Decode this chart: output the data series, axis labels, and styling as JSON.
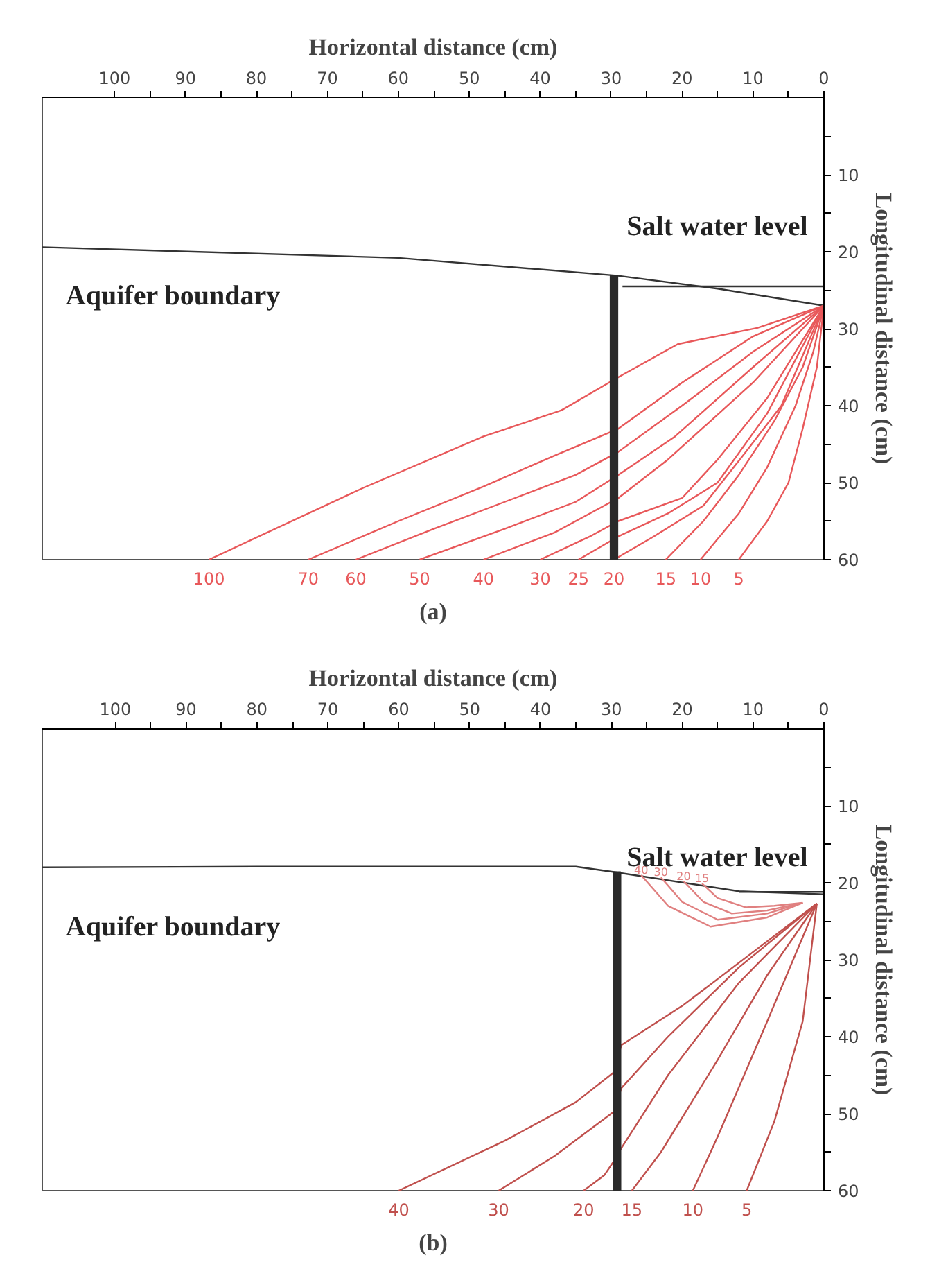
{
  "chart_data": [
    {
      "type": "line",
      "title": "(a)",
      "xlabel": "Horizontal distance (cm)",
      "ylabel": "Longitudinal distance (cm)",
      "xlim": [
        110.2,
        0
      ],
      "ylim": [
        60,
        0
      ],
      "xticks": [
        100,
        {
          "value": 95,
          "label": null
        },
        90,
        {
          "value": 85,
          "label": null
        },
        80,
        {
          "value": 75,
          "label": null
        },
        70,
        {
          "value": 65,
          "label": null
        },
        60,
        {
          "value": 55,
          "label": null
        },
        50,
        {
          "value": 45,
          "label": null
        },
        40,
        {
          "value": 35,
          "label": null
        },
        30,
        {
          "value": 25,
          "label": null
        },
        20,
        {
          "value": 15,
          "label": null
        },
        10,
        {
          "value": 5,
          "label": null
        },
        0
      ],
      "yticks": [
        {
          "value": 5,
          "label": null
        },
        10,
        {
          "value": 15,
          "label": null
        },
        20,
        {
          "value": 25,
          "label": null
        },
        30,
        {
          "value": 35,
          "label": null
        },
        40,
        {
          "value": 45,
          "label": null
        },
        50,
        {
          "value": 55,
          "label": null
        },
        60
      ],
      "grid": false,
      "annotations": [
        "Aquifer boundary",
        "Salt water level"
      ],
      "series": [
        {
          "type": "line",
          "color": "#333333",
          "x": [
            110.2,
            60,
            29.2,
            15,
            0
          ],
          "values": [
            19.4,
            20.8,
            23.1,
            24.8,
            27
          ]
        },
        {
          "type": "line",
          "color": "#333333",
          "x": [
            28.4,
            0
          ],
          "values": [
            24.5,
            24.5
          ]
        },
        {
          "name": "100",
          "type": "line",
          "color": "#e8585a",
          "x": [
            86.7,
            65,
            48,
            37,
            29,
            20.6,
            9.4,
            0
          ],
          "values": [
            60,
            50.7,
            44,
            40.6,
            36.3,
            32,
            29.9,
            27
          ]
        },
        {
          "name": "70",
          "type": "line",
          "color": "#e8585a",
          "x": [
            72.7,
            60,
            48,
            38,
            29,
            20,
            10,
            0
          ],
          "values": [
            60,
            55,
            50.5,
            46.5,
            43,
            37,
            31,
            27
          ]
        },
        {
          "name": "60",
          "type": "line",
          "color": "#e8585a",
          "x": [
            66,
            55,
            45,
            35,
            29,
            20,
            10,
            0
          ],
          "values": [
            60,
            56,
            52.5,
            49,
            46,
            40,
            33,
            27
          ]
        },
        {
          "name": "50",
          "type": "line",
          "color": "#e8585a",
          "x": [
            57,
            45,
            35,
            29,
            21,
            10,
            0
          ],
          "values": [
            60,
            56,
            52.5,
            49,
            44,
            35,
            27
          ]
        },
        {
          "name": "40",
          "type": "line",
          "color": "#e8585a",
          "x": [
            48,
            38,
            29,
            22,
            10,
            0
          ],
          "values": [
            60,
            56.5,
            52,
            47,
            37,
            27
          ]
        },
        {
          "name": "30",
          "type": "line",
          "color": "#e8585a",
          "x": [
            40,
            33,
            29,
            20,
            15,
            8,
            0
          ],
          "values": [
            60,
            57,
            55,
            52,
            47,
            39,
            27
          ]
        },
        {
          "name": "25",
          "type": "line",
          "color": "#e8585a",
          "x": [
            34.6,
            29,
            22,
            15,
            8,
            0
          ],
          "values": [
            60,
            57,
            54,
            50,
            41,
            27
          ]
        },
        {
          "name": "20",
          "type": "line",
          "color": "#e8585a",
          "x": [
            29.6,
            24,
            17,
            11,
            6,
            0
          ],
          "values": [
            60,
            57,
            53,
            46,
            40,
            27
          ]
        },
        {
          "name": "15",
          "type": "line",
          "color": "#e8585a",
          "x": [
            22.3,
            17,
            12,
            7,
            3,
            0
          ],
          "values": [
            60,
            55,
            49,
            42,
            35,
            27
          ]
        },
        {
          "name": "10",
          "type": "line",
          "color": "#e8585a",
          "x": [
            17.4,
            12,
            8,
            4,
            1.5,
            0
          ],
          "values": [
            60,
            54,
            48,
            40,
            33,
            27
          ]
        },
        {
          "name": "5",
          "type": "line",
          "color": "#e8585a",
          "x": [
            12,
            8,
            5,
            3,
            1,
            0
          ],
          "values": [
            60,
            55,
            50,
            43,
            35,
            27
          ]
        },
        {
          "type": "bar",
          "color": "#2a2a2a",
          "x": [
            29.6
          ],
          "base": [
            23.1
          ],
          "values": [
            36.9
          ]
        }
      ]
    },
    {
      "type": "line",
      "title": "(b)",
      "xlabel": "Horizontal distance (cm)",
      "ylabel": "Longitudinal distance (cm)",
      "xlim": [
        110.3,
        0
      ],
      "ylim": [
        60,
        0
      ],
      "xticks": [
        100,
        {
          "value": 95,
          "label": null
        },
        90,
        {
          "value": 85,
          "label": null
        },
        80,
        {
          "value": 75,
          "label": null
        },
        70,
        {
          "value": 65,
          "label": null
        },
        60,
        {
          "value": 55,
          "label": null
        },
        50,
        {
          "value": 45,
          "label": null
        },
        40,
        {
          "value": 35,
          "label": null
        },
        30,
        {
          "value": 25,
          "label": null
        },
        20,
        {
          "value": 15,
          "label": null
        },
        10,
        {
          "value": 5,
          "label": null
        },
        0
      ],
      "yticks": [
        {
          "value": 5,
          "label": null
        },
        10,
        {
          "value": 15,
          "label": null
        },
        20,
        {
          "value": 25,
          "label": null
        },
        30,
        {
          "value": 35,
          "label": null
        },
        40,
        {
          "value": 45,
          "label": null
        },
        50,
        {
          "value": 55,
          "label": null
        },
        60
      ],
      "grid": false,
      "annotations": [
        "Aquifer boundary",
        "Salt water level"
      ],
      "series": [
        {
          "type": "line",
          "color": "#333333",
          "x": [
            110.3,
            80,
            35,
            29.6,
            12,
            0
          ],
          "values": [
            18,
            17.9,
            17.9,
            18.6,
            21.1,
            21.5
          ]
        },
        {
          "type": "line",
          "color": "#333333",
          "x": [
            12,
            0
          ],
          "values": [
            21.2,
            21.2
          ]
        },
        {
          "name": "40",
          "type": "line",
          "color": "#c0504d",
          "x": [
            60,
            45,
            35,
            29.6,
            28.6,
            20,
            10,
            1
          ],
          "values": [
            60,
            53.5,
            48.5,
            44.6,
            41.1,
            36,
            29,
            22.7
          ]
        },
        {
          "name": "30",
          "type": "line",
          "color": "#c0504d",
          "x": [
            45.9,
            38,
            29.6,
            28.6,
            22,
            12,
            1
          ],
          "values": [
            60,
            55.5,
            49.7,
            46.7,
            40,
            31,
            22.7
          ]
        },
        {
          "name": "20",
          "type": "line",
          "color": "#c0504d",
          "x": [
            33.9,
            31,
            29.6,
            28.6,
            22,
            12,
            1
          ],
          "values": [
            60,
            58,
            56.1,
            54.5,
            45,
            33,
            22.7
          ]
        },
        {
          "name": "15",
          "type": "line",
          "color": "#c0504d",
          "x": [
            27.1,
            23,
            15,
            8,
            1
          ],
          "values": [
            60,
            55,
            43,
            32,
            22.7
          ]
        },
        {
          "name": "10",
          "type": "line",
          "color": "#c0504d",
          "x": [
            18.5,
            15,
            8,
            1
          ],
          "values": [
            60,
            53,
            38,
            22.7
          ]
        },
        {
          "name": "5",
          "type": "line",
          "color": "#c0504d",
          "x": [
            10.9,
            7,
            3,
            1
          ],
          "values": [
            60,
            51,
            38,
            22.7
          ]
        },
        {
          "name": "40",
          "type": "line",
          "color": "#e08080",
          "x": [
            25.8,
            22,
            16,
            8,
            3
          ],
          "values": [
            19,
            23,
            25.7,
            24.5,
            22.6
          ]
        },
        {
          "name": "30",
          "type": "line",
          "color": "#e08080",
          "x": [
            23,
            20,
            15,
            8,
            3
          ],
          "values": [
            19.3,
            22.5,
            24.8,
            24,
            22.6
          ]
        },
        {
          "name": "20",
          "type": "line",
          "color": "#e08080",
          "x": [
            19.8,
            17,
            13,
            8,
            3
          ],
          "values": [
            19.8,
            22.5,
            24,
            23.6,
            22.6
          ]
        },
        {
          "name": "15",
          "type": "line",
          "color": "#e08080",
          "x": [
            17.2,
            15,
            11,
            7,
            3
          ],
          "values": [
            20.1,
            22,
            23.2,
            23,
            22.6
          ]
        },
        {
          "type": "bar",
          "color": "#2a2a2a",
          "x": [
            29.2
          ],
          "base": [
            18.6
          ],
          "values": [
            41.4
          ]
        }
      ]
    }
  ]
}
